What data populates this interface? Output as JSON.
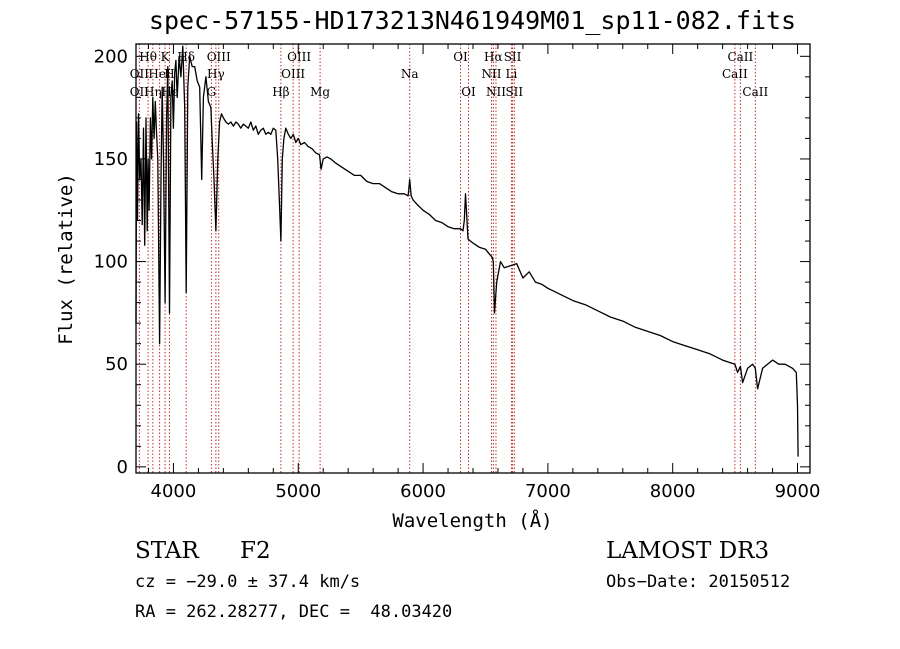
{
  "chart_data": {
    "type": "line",
    "title": "spec-57155-HD173213N461949M01_sp11-082.fits",
    "xlabel": "Wavelength (Å)",
    "ylabel": "Flux (relative)",
    "xlim": [
      3700,
      9100
    ],
    "ylim": [
      -3,
      206
    ],
    "xticks": [
      4000,
      5000,
      6000,
      7000,
      8000,
      9000
    ],
    "xtick_labels": [
      "4000",
      "5000",
      "6000",
      "7000",
      "8000",
      "9000"
    ],
    "yticks": [
      0,
      50,
      100,
      150,
      200
    ],
    "ytick_labels": [
      "0",
      "50",
      "100",
      "150",
      "200"
    ],
    "grid": false,
    "series": [
      {
        "name": "spectrum",
        "x": [
          3700,
          3705,
          3712,
          3720,
          3730,
          3740,
          3750,
          3760,
          3770,
          3780,
          3790,
          3797,
          3805,
          3815,
          3825,
          3835,
          3845,
          3855,
          3865,
          3875,
          3889,
          3900,
          3910,
          3920,
          3933,
          3945,
          3955,
          3968,
          3980,
          3990,
          4000,
          4010,
          4020,
          4030,
          4045,
          4060,
          4075,
          4090,
          4102,
          4115,
          4130,
          4150,
          4170,
          4190,
          4210,
          4226,
          4240,
          4260,
          4280,
          4300,
          4310,
          4325,
          4340,
          4355,
          4370,
          4385,
          4400,
          4420,
          4440,
          4460,
          4480,
          4500,
          4520,
          4540,
          4560,
          4580,
          4600,
          4620,
          4640,
          4660,
          4680,
          4700,
          4720,
          4740,
          4760,
          4780,
          4800,
          4820,
          4835,
          4850,
          4861,
          4872,
          4885,
          4900,
          4920,
          4940,
          4960,
          4980,
          5000,
          5020,
          5050,
          5080,
          5110,
          5140,
          5170,
          5183,
          5200,
          5230,
          5260,
          5300,
          5350,
          5400,
          5450,
          5500,
          5550,
          5600,
          5650,
          5700,
          5750,
          5800,
          5850,
          5880,
          5893,
          5905,
          5920,
          5950,
          6000,
          6050,
          6100,
          6150,
          6200,
          6250,
          6300,
          6320,
          6330,
          6340,
          6360,
          6400,
          6450,
          6500,
          6540,
          6555,
          6563,
          6572,
          6590,
          6620,
          6650,
          6700,
          6750,
          6800,
          6850,
          6900,
          6950,
          7000,
          7100,
          7200,
          7300,
          7400,
          7500,
          7600,
          7700,
          7800,
          7900,
          8000,
          8100,
          8200,
          8300,
          8400,
          8498,
          8520,
          8542,
          8560,
          8600,
          8640,
          8662,
          8680,
          8720,
          8800,
          8850,
          8900,
          8960,
          8990,
          9000,
          9005
        ],
        "values": [
          70,
          168,
          120,
          172,
          140,
          150,
          118,
          165,
          108,
          170,
          115,
          150,
          125,
          170,
          150,
          180,
          160,
          178,
          162,
          150,
          60,
          140,
          185,
          150,
          80,
          170,
          195,
          75,
          180,
          188,
          165,
          192,
          198,
          180,
          200,
          190,
          205,
          175,
          85,
          185,
          200,
          195,
          195,
          188,
          185,
          140,
          180,
          190,
          178,
          175,
          160,
          140,
          115,
          150,
          168,
          172,
          170,
          168,
          167,
          168,
          166,
          168,
          167,
          165,
          167,
          166,
          165,
          168,
          164,
          166,
          162,
          164,
          165,
          162,
          163,
          162,
          165,
          164,
          150,
          128,
          110,
          150,
          160,
          165,
          162,
          160,
          162,
          158,
          160,
          157,
          158,
          156,
          155,
          153,
          152,
          145,
          150,
          151,
          150,
          148,
          146,
          144,
          142,
          142,
          139,
          138,
          138,
          136,
          134,
          133,
          133,
          132,
          140,
          132,
          130,
          128,
          125,
          123,
          120,
          119,
          117,
          116,
          116,
          115,
          120,
          133,
          111,
          109,
          107,
          106,
          103,
          102,
          100,
          75,
          90,
          100,
          97,
          98,
          99,
          92,
          95,
          90,
          89,
          87,
          84,
          81,
          79,
          76,
          73,
          71,
          68,
          66,
          64,
          61,
          59,
          57,
          55,
          52,
          50,
          46,
          49,
          41,
          48,
          50,
          48,
          38,
          48,
          52,
          50,
          50,
          48,
          46,
          30,
          5
        ]
      }
    ],
    "line_markers": [
      {
        "label": "OII",
        "x": 3727,
        "row": 2
      },
      {
        "label": "OII",
        "x": 3727,
        "row": 3
      },
      {
        "label": "Hθ",
        "x": 3797,
        "row": 1
      },
      {
        "label": "Hη",
        "x": 3835,
        "row": 3
      },
      {
        "label": "HeI",
        "x": 3889,
        "row": 2
      },
      {
        "label": "K",
        "x": 3933,
        "row": 1
      },
      {
        "label": "H",
        "x": 3968,
        "row": 2
      },
      {
        "label": "Hε",
        "x": 3970,
        "row": 3
      },
      {
        "label": "Hδ",
        "x": 4102,
        "row": 1
      },
      {
        "label": "G",
        "x": 4304,
        "row": 3
      },
      {
        "label": "OIII",
        "x": 4363,
        "row": 1
      },
      {
        "label": "Hγ",
        "x": 4340,
        "row": 2
      },
      {
        "label": "Hβ",
        "x": 4861,
        "row": 3
      },
      {
        "label": "OIII",
        "x": 5007,
        "row": 1
      },
      {
        "label": "OIII",
        "x": 4959,
        "row": 2
      },
      {
        "label": "Mg",
        "x": 5175,
        "row": 3
      },
      {
        "label": "Na",
        "x": 5893,
        "row": 2
      },
      {
        "label": "OI",
        "x": 6300,
        "row": 1
      },
      {
        "label": "OI",
        "x": 6364,
        "row": 3
      },
      {
        "label": "Hα",
        "x": 6563,
        "row": 1
      },
      {
        "label": "NII",
        "x": 6548,
        "row": 2
      },
      {
        "label": "NII",
        "x": 6584,
        "row": 3
      },
      {
        "label": "SII",
        "x": 6717,
        "row": 1
      },
      {
        "label": "Li",
        "x": 6708,
        "row": 2
      },
      {
        "label": "SII",
        "x": 6731,
        "row": 3
      },
      {
        "label": "CaII",
        "x": 8542,
        "row": 1
      },
      {
        "label": "CaII",
        "x": 8498,
        "row": 2
      },
      {
        "label": "CaII",
        "x": 8662,
        "row": 3
      }
    ],
    "marker_lines_x": [
      3727,
      3797,
      3835,
      3889,
      3933,
      3968,
      4102,
      4304,
      4340,
      4363,
      4861,
      4959,
      5007,
      5175,
      5893,
      6300,
      6364,
      6548,
      6563,
      6584,
      6708,
      6717,
      6731,
      8498,
      8542,
      8662
    ]
  },
  "info": {
    "object_class": "STAR",
    "subclass": "F2",
    "survey": "LAMOST DR3",
    "cz": "cz = −29.0 ± 37.4 km/s",
    "obs_date": "Obs−Date: 20150512",
    "radec": "RA = 262.28277, DEC =  48.03420"
  },
  "colors": {
    "spectrum": "#000000",
    "marker_line": "#c0302a",
    "axis": "#000000",
    "background": "#ffffff"
  }
}
